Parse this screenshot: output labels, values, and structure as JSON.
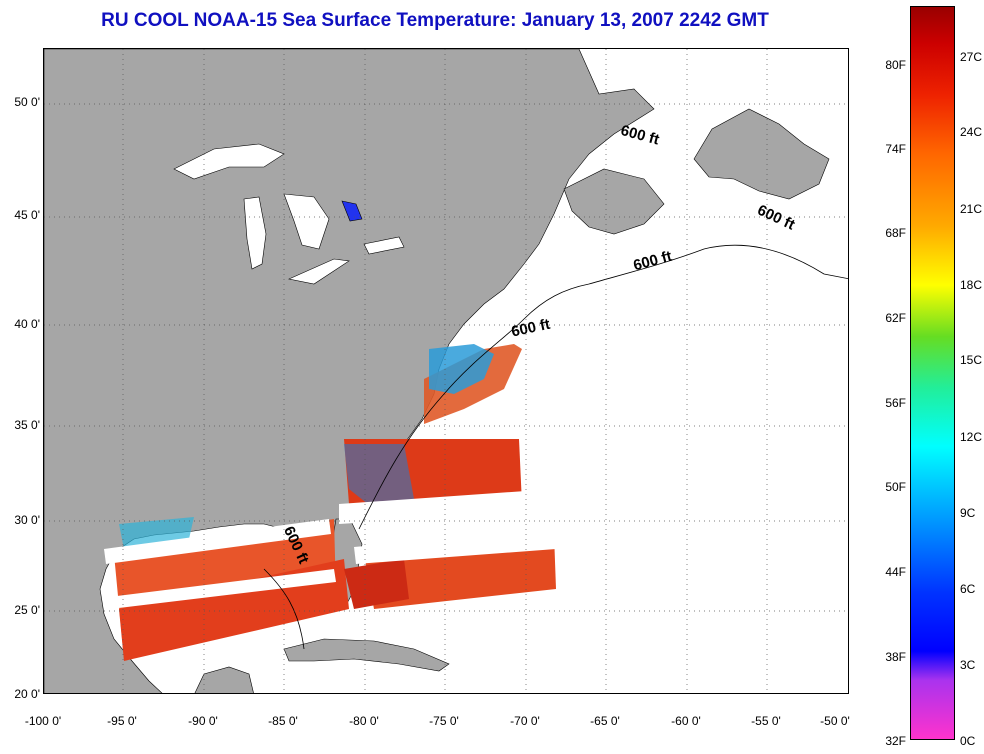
{
  "title": "RU COOL  NOAA-15  Sea Surface Temperature:  January 13, 2007 2242 GMT",
  "lat_labels": [
    "50 0'",
    "45 0'",
    "40 0'",
    "35 0'",
    "30 0'",
    "25 0'",
    "20 0'"
  ],
  "lon_labels": [
    "-100 0'",
    "-95 0'",
    "-90 0'",
    "-85 0'",
    "-80 0'",
    "-75 0'",
    "-70 0'",
    "-65 0'",
    "-60 0'",
    "-55 0'",
    "-50 0'"
  ],
  "contour_label": "600 ft",
  "colorbar": {
    "fahrenheit": [
      "80F",
      "74F",
      "68F",
      "62F",
      "56F",
      "50F",
      "44F",
      "38F",
      "32F"
    ],
    "celsius": [
      "27C",
      "24C",
      "21C",
      "18C",
      "15C",
      "12C",
      "9C",
      "6C",
      "3C",
      "0C"
    ]
  },
  "colors": {
    "land": "#a6a6a6",
    "title": "#1010c0",
    "warm": "#e84a1c",
    "cool": "#1a7fe0"
  }
}
